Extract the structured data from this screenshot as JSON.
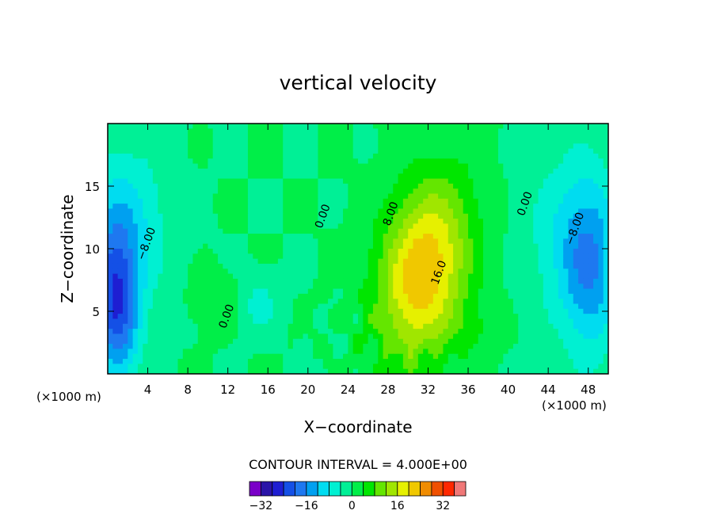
{
  "chart_data": {
    "type": "heatmap",
    "title": "vertical velocity",
    "xlabel": "X−coordinate",
    "ylabel": "Z−coordinate",
    "x_unit_left": "(×1000 m)",
    "x_unit_right": "(×1000 m)",
    "xlim": [
      0,
      50
    ],
    "ylim": [
      0,
      20
    ],
    "x_ticks": [
      4,
      8,
      12,
      16,
      20,
      24,
      28,
      32,
      36,
      40,
      44,
      48
    ],
    "y_ticks": [
      5,
      10,
      15
    ],
    "contour_interval_text": "CONTOUR INTERVAL = 4.000E+00",
    "contour_interval": 4,
    "contour_labels": [
      {
        "text": "−8.00",
        "x": 4.2,
        "y": 10.3
      },
      {
        "text": "0.00",
        "x": 21.8,
        "y": 12.5
      },
      {
        "text": "0.00",
        "x": 12.2,
        "y": 4.5
      },
      {
        "text": "8.00",
        "x": 28.6,
        "y": 12.7
      },
      {
        "text": "16.0",
        "x": 33.4,
        "y": 8.0
      },
      {
        "text": "0.00",
        "x": 42.0,
        "y": 13.5
      },
      {
        "text": "−8.00",
        "x": 47.0,
        "y": 11.5
      }
    ],
    "colorbar": {
      "levels": [
        -36,
        -32,
        -28,
        -24,
        -20,
        -16,
        -12,
        -8,
        -4,
        0,
        4,
        8,
        12,
        16,
        20,
        24,
        28,
        32,
        36
      ],
      "colors": [
        "#7a00c8",
        "#2a14a8",
        "#1e1ed2",
        "#1450e6",
        "#1e78f0",
        "#00a0f0",
        "#00dcf0",
        "#00f0d2",
        "#00f096",
        "#00ee48",
        "#00e600",
        "#64e600",
        "#a0e600",
        "#e6f000",
        "#f0c800",
        "#f08c00",
        "#f05000",
        "#ff2800",
        "#f07878"
      ],
      "tick_values": [
        -32,
        -16,
        0,
        16,
        32
      ],
      "tick_labels": [
        "−32",
        "−16",
        "0",
        "16",
        "32"
      ]
    },
    "field_features": [
      {
        "kind": "updraft",
        "x": 31.5,
        "y": 8.2,
        "peak": 24
      },
      {
        "kind": "downdraft",
        "x": 0.9,
        "y": 5.5,
        "peak": -22
      },
      {
        "kind": "downdraft",
        "x": 48.2,
        "y": 8.5,
        "peak": -14
      }
    ]
  }
}
